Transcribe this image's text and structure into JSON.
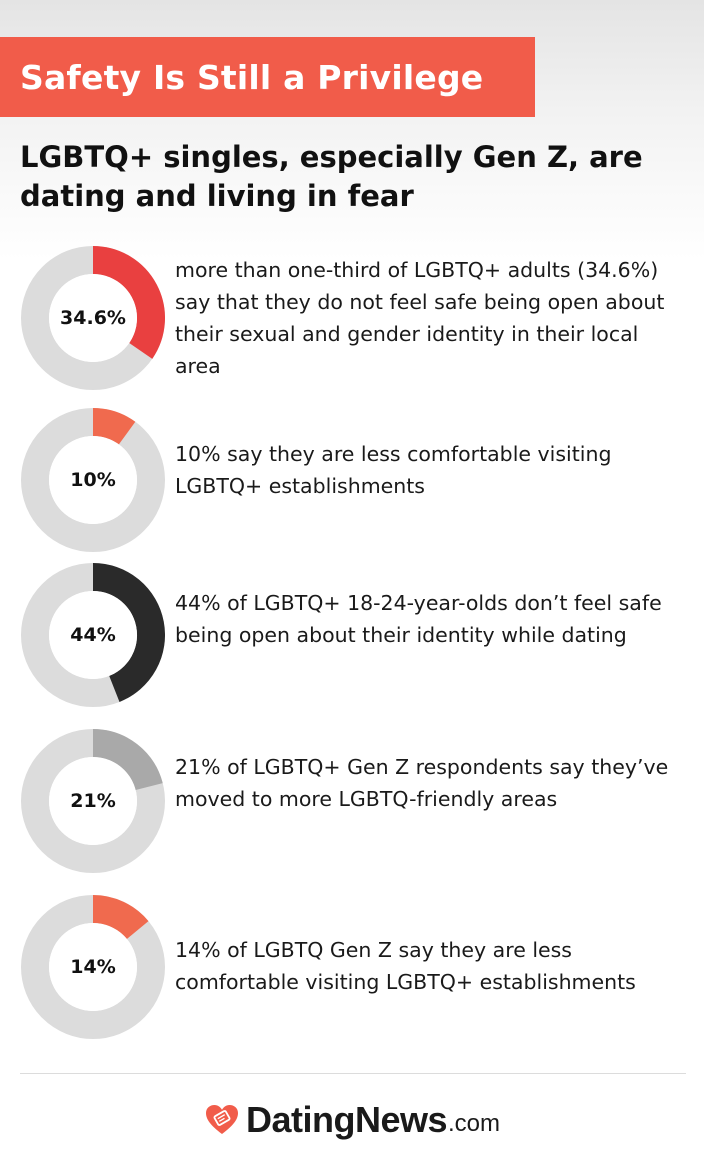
{
  "header": {
    "banner_title": "Safety Is Still a Privilege",
    "subtitle": "LGBTQ+ singles, especially Gen Z, are dating and living in fear"
  },
  "colors": {
    "banner": "#f15c4a",
    "track": "#dcdcdc",
    "red": "#e94040",
    "orange": "#f06a4e",
    "dark": "#2a2a2a",
    "gray": "#a9a9a9"
  },
  "chart_data": {
    "type": "donut",
    "items": [
      {
        "label": "34.6%",
        "value": 34.6,
        "color": "#e94040",
        "text": "more than one-third of LGBTQ+ adults (34.6%) say that they do not feel safe being open about their sexual and gender identity in their local area"
      },
      {
        "label": "10%",
        "value": 10,
        "color": "#f06a4e",
        "text": "10% say they are less comfortable visiting LGBTQ+ establishments"
      },
      {
        "label": "44%",
        "value": 44,
        "color": "#2a2a2a",
        "text": "44% of LGBTQ+ 18-24-year-olds don’t feel safe being open about their identity while dating"
      },
      {
        "label": "21%",
        "value": 21,
        "color": "#a9a9a9",
        "text": "21% of LGBTQ+ Gen Z respondents say they’ve moved to more LGBTQ-friendly areas"
      },
      {
        "label": "14%",
        "value": 14,
        "color": "#f06a4e",
        "text": "14% of LGBTQ Gen Z say they are less comfortable visiting LGBTQ+ establishments"
      }
    ]
  },
  "footer": {
    "brand_name": "DatingNews",
    "brand_tld": ".com",
    "logo_icon": "heart-logo-icon"
  }
}
